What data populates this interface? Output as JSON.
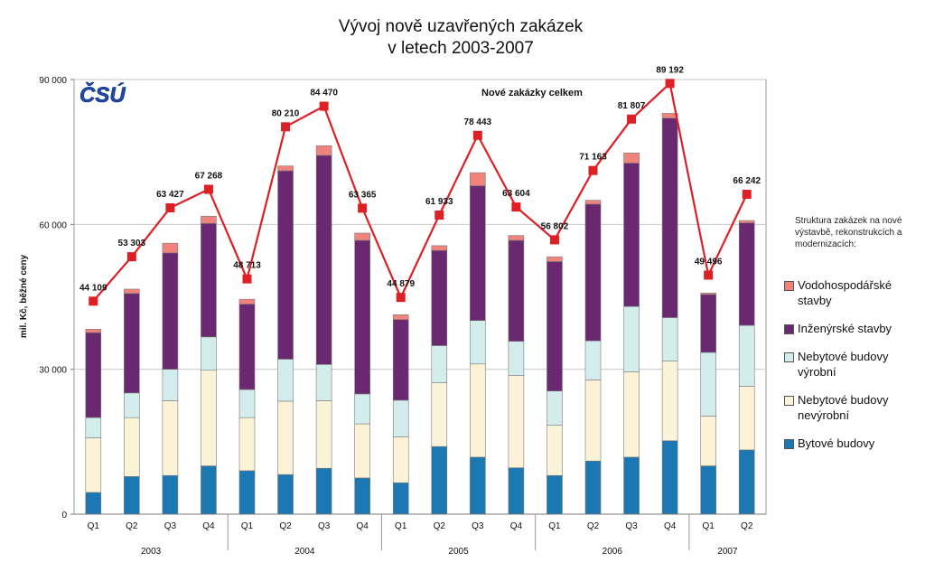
{
  "chart_data": {
    "type": "bar",
    "title_line1": "Vývoj nově uzavřených zakázek",
    "title_line2": "v letech 2003-2007",
    "logo": "ČSÚ",
    "ylabel": "mil. Kč, běžné ceny",
    "ylim": [
      0,
      90000
    ],
    "yticks": [
      "0",
      "30 000",
      "60 000",
      "90 000"
    ],
    "ytick_values": [
      0,
      30000,
      60000,
      90000
    ],
    "categories": [
      "Q1",
      "Q2",
      "Q3",
      "Q4",
      "Q1",
      "Q2",
      "Q3",
      "Q4",
      "Q1",
      "Q2",
      "Q3",
      "Q4",
      "Q1",
      "Q2",
      "Q3",
      "Q4",
      "Q1",
      "Q2"
    ],
    "years": [
      {
        "label": "2003",
        "start": 0,
        "count": 4
      },
      {
        "label": "2004",
        "start": 4,
        "count": 4
      },
      {
        "label": "2005",
        "start": 8,
        "count": 4
      },
      {
        "label": "2006",
        "start": 12,
        "count": 4
      },
      {
        "label": "2007",
        "start": 16,
        "count": 2
      }
    ],
    "stack_order_bottom_to_top": [
      "Bytové budovy",
      "Nebytové budovy nevýrobní",
      "Nebytové budovy výrobní",
      "Inženýrské stavby",
      "Vodohospodářské stavby"
    ],
    "series": [
      {
        "name": "Bytové budovy",
        "color": "#1b78b3",
        "values": [
          4500,
          7800,
          8000,
          10000,
          9000,
          8200,
          9500,
          7500,
          6500,
          14000,
          11800,
          9600,
          8000,
          11000,
          11800,
          15200,
          10000,
          13300
        ]
      },
      {
        "name": "Nebytové budovy nevýrobní",
        "color": "#fbf3d8",
        "values": [
          11300,
          12200,
          15500,
          19800,
          11000,
          15200,
          14000,
          11200,
          9500,
          13200,
          19300,
          19100,
          10400,
          16800,
          17700,
          16500,
          10300,
          13200
        ]
      },
      {
        "name": "Nebytové budovy výrobní",
        "color": "#d3ecec",
        "values": [
          4200,
          5100,
          6500,
          6900,
          5800,
          8700,
          7500,
          6200,
          7600,
          7700,
          9000,
          7100,
          7100,
          8100,
          13500,
          9000,
          13200,
          12600
        ]
      },
      {
        "name": "Inženýrské stavby",
        "color": "#6a2870",
        "values": [
          17600,
          20600,
          24100,
          23500,
          17700,
          39000,
          43300,
          31800,
          16700,
          19700,
          27900,
          20900,
          26800,
          28300,
          29700,
          41300,
          12000,
          21200
        ]
      },
      {
        "name": "Vodohospodářské stavby",
        "color": "#f0847c",
        "values": [
          700,
          900,
          2000,
          1500,
          1000,
          1000,
          2000,
          1500,
          1000,
          1000,
          2700,
          1000,
          1000,
          800,
          2100,
          1000,
          300,
          500
        ]
      }
    ],
    "line": {
      "name": "Nové zakázky celkem",
      "color": "#dd1f26",
      "values": [
        44109,
        53303,
        63427,
        67268,
        48713,
        80210,
        84470,
        63365,
        44879,
        61933,
        78443,
        63604,
        56802,
        71163,
        81807,
        89192,
        49496,
        66242
      ],
      "labels": [
        "44 109",
        "53 303",
        "63 427",
        "67 268",
        "48 713",
        "80 210",
        "84 470",
        "63 365",
        "44 879",
        "61 933",
        "78 443",
        "63 604",
        "56 802",
        "71 163",
        "81 807",
        "89 192",
        "49 496",
        "66 242"
      ]
    },
    "legend_note": "Struktura zakázek na nové výstavbě, rekonstrukcích a modernizacích:",
    "legend": [
      {
        "label": "Vodohospodářské stavby",
        "color": "#f0847c"
      },
      {
        "label": "Inženýrské stavby",
        "color": "#6a2870"
      },
      {
        "label": "Nebytové budovy výrobní",
        "color": "#d3ecec"
      },
      {
        "label": "Nebytové budovy nevýrobní",
        "color": "#fbf3d8"
      },
      {
        "label": "Bytové budovy",
        "color": "#1b78b3"
      }
    ],
    "grid": true
  }
}
